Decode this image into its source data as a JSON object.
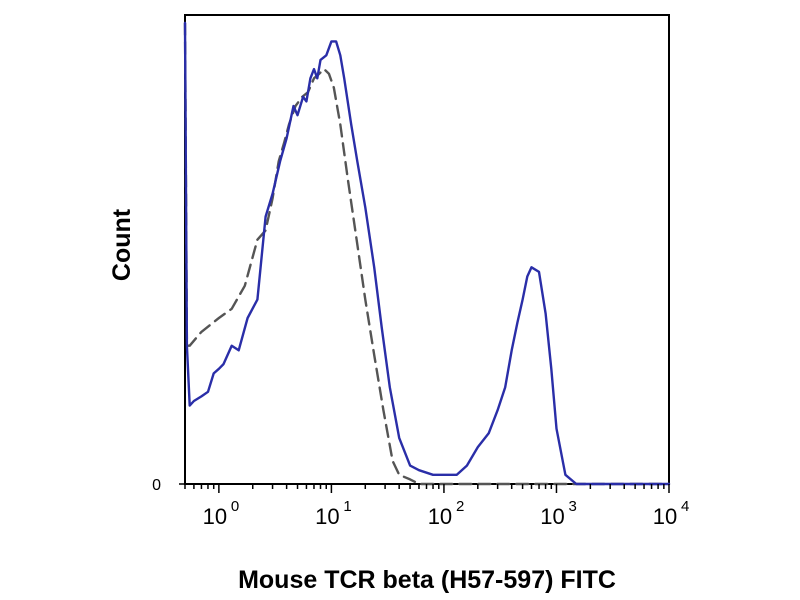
{
  "chart_data": {
    "type": "line",
    "title": "",
    "xlabel": "Mouse TCR beta (H57-597) FITC",
    "ylabel": "Count",
    "x_scale": "log",
    "xlim": [
      0.5,
      10000
    ],
    "ylim": [
      0,
      100
    ],
    "grid": false,
    "legend": "none",
    "x_ticks": [
      {
        "value": 1,
        "base": "10",
        "exp": "0"
      },
      {
        "value": 10,
        "base": "10",
        "exp": "1"
      },
      {
        "value": 100,
        "base": "10",
        "exp": "2"
      },
      {
        "value": 1000,
        "base": "10",
        "exp": "3"
      },
      {
        "value": 10000,
        "base": "10",
        "exp": "4"
      }
    ],
    "y_ticks": [
      {
        "value": 0,
        "label": "0"
      }
    ],
    "series": [
      {
        "style": "solid",
        "color": "#2a2ea8",
        "x": [
          0.5,
          0.52,
          0.55,
          0.6,
          0.7,
          0.8,
          0.9,
          1.0,
          1.1,
          1.3,
          1.5,
          1.8,
          2.2,
          2.6,
          3.0,
          3.5,
          4.0,
          4.6,
          5.0,
          5.6,
          6.0,
          6.5,
          7.0,
          7.5,
          8.0,
          9.0,
          10.0,
          11.0,
          12.0,
          13.0,
          15.0,
          17.0,
          20.0,
          24.0,
          28.0,
          33.0,
          40.0,
          50.0,
          60.0,
          80.0,
          100.0,
          130.0,
          160.0,
          200.0,
          250.0,
          300.0,
          350.0,
          400.0,
          450.0,
          500.0,
          550.0,
          600.0,
          700.0,
          800.0,
          900.0,
          1000.0,
          1200.0,
          1500.0,
          2000.0,
          3000.0,
          5000.0,
          10000.0
        ],
        "y": [
          100,
          30,
          17,
          18,
          19,
          20,
          24,
          25,
          26,
          30,
          29,
          36,
          40,
          58,
          63,
          70,
          75,
          82,
          80,
          84,
          83,
          88,
          90,
          88,
          92,
          93,
          96,
          96,
          93,
          88,
          78,
          70,
          60,
          47,
          34,
          21,
          10,
          4,
          3,
          2,
          2,
          2,
          4,
          8,
          11,
          16,
          21,
          29,
          35,
          40,
          45,
          47,
          46,
          37,
          25,
          12,
          2,
          0,
          0,
          0,
          0,
          0
        ]
      },
      {
        "style": "dashed",
        "color": "#555555",
        "x": [
          0.5,
          0.52,
          0.55,
          0.7,
          1.0,
          1.3,
          1.7,
          2.2,
          2.6,
          3.0,
          3.4,
          3.8,
          4.2,
          4.8,
          5.5,
          6.2,
          7.0,
          7.8,
          8.6,
          9.5,
          10.5,
          12.0,
          14.0,
          17.0,
          20.0,
          24.0,
          29.0,
          35.0,
          40.0,
          50.0,
          60.0,
          80.0,
          100.0,
          150.0,
          300.0,
          10000.0
        ],
        "y": [
          100,
          30,
          30,
          33,
          36,
          38,
          43,
          53,
          55,
          62,
          70,
          74,
          78,
          82,
          84,
          85,
          88,
          89,
          90,
          89,
          86,
          78,
          66,
          52,
          40,
          28,
          16,
          5,
          2,
          1,
          0,
          0,
          0,
          0,
          0,
          0
        ]
      }
    ]
  }
}
